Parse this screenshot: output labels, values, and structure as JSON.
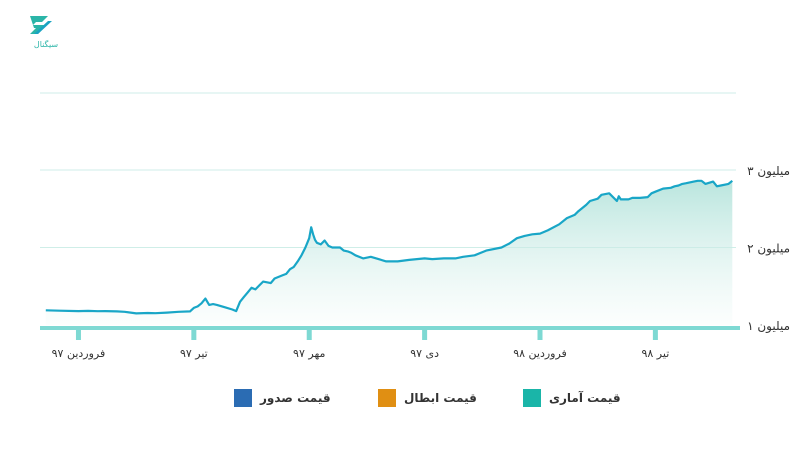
{
  "logo": {
    "text": "سیگنال",
    "icon": "signal-logo-icon"
  },
  "colors": {
    "line": "#19a6c7",
    "fill_top": "#a3ddd3",
    "fill_bottom": "#f7fcfb",
    "grid": "#cfeee8",
    "baseline": "#7ed9d3"
  },
  "chart_data": {
    "type": "area",
    "y_tick_labels": [
      "۱ میلیون",
      "۲ میلیون",
      "۳ میلیون"
    ],
    "y_ticks": [
      1000000,
      2000000,
      3000000
    ],
    "ylim": [
      1000000,
      3000000
    ],
    "x_tick_labels": [
      "فروردین ۹۷",
      "تیر ۹۷",
      "مهر ۹۷",
      "دی ۹۷",
      "فروردین ۹۸",
      "تیر ۹۸"
    ],
    "x_ticks": [
      1,
      4,
      7,
      10,
      13,
      16
    ],
    "xlim": [
      0,
      18.2
    ],
    "grid": true,
    "x_months": [
      0.15,
      0.5,
      1,
      1.25,
      1.5,
      1.7,
      2,
      2.2,
      2.5,
      2.8,
      3,
      3.3,
      3.6,
      3.9,
      4,
      4.1,
      4.2,
      4.3,
      4.35,
      4.4,
      4.5,
      4.6,
      4.8,
      5,
      5.1,
      5.2,
      5.3,
      5.4,
      5.5,
      5.6,
      5.7,
      5.8,
      6,
      6.1,
      6.3,
      6.4,
      6.5,
      6.6,
      6.7,
      6.8,
      6.9,
      7,
      7.05,
      7.1,
      7.15,
      7.2,
      7.3,
      7.4,
      7.5,
      7.6,
      7.8,
      7.9,
      8,
      8.1,
      8.2,
      8.4,
      8.6,
      8.8,
      9,
      9.3,
      9.6,
      9.8,
      10,
      10.2,
      10.5,
      10.8,
      11,
      11.3,
      11.6,
      12,
      12.2,
      12.4,
      12.6,
      12.8,
      13,
      13.2,
      13.5,
      13.7,
      13.9,
      14,
      14.2,
      14.3,
      14.5,
      14.6,
      14.8,
      15,
      15.05,
      15.1,
      15.3,
      15.4,
      15.6,
      15.8,
      15.9,
      16,
      16.2,
      16.4,
      16.5,
      16.6,
      16.7,
      16.8,
      17,
      17.1,
      17.2,
      17.3,
      17.5,
      17.6,
      17.7,
      17.9,
      18
    ],
    "values": [
      1190000,
      1185000,
      1180000,
      1182000,
      1178000,
      1180000,
      1175000,
      1170000,
      1150000,
      1155000,
      1152000,
      1160000,
      1170000,
      1175000,
      1220000,
      1240000,
      1280000,
      1340000,
      1300000,
      1260000,
      1270000,
      1260000,
      1230000,
      1200000,
      1180000,
      1300000,
      1360000,
      1420000,
      1480000,
      1460000,
      1510000,
      1560000,
      1540000,
      1600000,
      1640000,
      1660000,
      1720000,
      1750000,
      1820000,
      1900000,
      2000000,
      2120000,
      2260000,
      2170000,
      2100000,
      2060000,
      2040000,
      2090000,
      2020000,
      2000000,
      2000000,
      1960000,
      1950000,
      1930000,
      1900000,
      1860000,
      1880000,
      1850000,
      1820000,
      1820000,
      1840000,
      1850000,
      1860000,
      1850000,
      1860000,
      1860000,
      1880000,
      1900000,
      1960000,
      2000000,
      2050000,
      2120000,
      2150000,
      2170000,
      2180000,
      2220000,
      2300000,
      2380000,
      2420000,
      2470000,
      2550000,
      2600000,
      2630000,
      2680000,
      2700000,
      2600000,
      2660000,
      2620000,
      2620000,
      2640000,
      2640000,
      2650000,
      2700000,
      2720000,
      2760000,
      2770000,
      2790000,
      2800000,
      2820000,
      2830000,
      2850000,
      2860000,
      2860000,
      2820000,
      2850000,
      2790000,
      2800000,
      2820000,
      2860000
    ]
  },
  "legend": [
    {
      "label": "قیمت صدور",
      "color": "#2b6cb3"
    },
    {
      "label": "قیمت ابطال",
      "color": "#e08f13"
    },
    {
      "label": "قیمت آماری",
      "color": "#1ab5a8"
    }
  ]
}
